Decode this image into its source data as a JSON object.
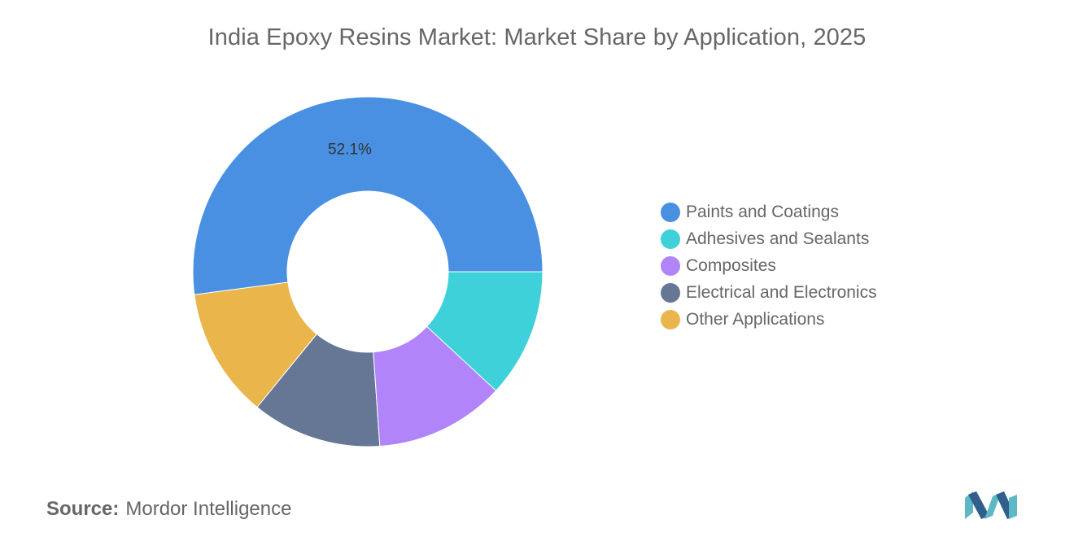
{
  "title": "India Epoxy Resins Market: Market Share by Application, 2025",
  "source": {
    "label": "Source:",
    "value": "Mordor Intelligence"
  },
  "colors": {
    "Paints and Coatings": "#4a90e2",
    "Adhesives and Sealants": "#3fd1d9",
    "Composites": "#b184fa",
    "Electrical and Electronics": "#667796",
    "Other Applications": "#eab54a"
  },
  "chart_data": {
    "type": "pie",
    "donut": true,
    "title": "India Epoxy Resins Market: Market Share by Application, 2025",
    "categories": [
      "Paints and Coatings",
      "Other Applications",
      "Electrical and Electronics",
      "Composites",
      "Adhesives and Sealants"
    ],
    "values": [
      52.1,
      12.0,
      12.0,
      12.0,
      11.9
    ],
    "data_labels": [
      "52.1%",
      "",
      "",
      "",
      ""
    ],
    "legend": {
      "placement": "right",
      "entries": [
        "Paints and Coatings",
        "Adhesives and Sealants",
        "Composites",
        "Electrical and Electronics",
        "Other Applications"
      ]
    }
  }
}
